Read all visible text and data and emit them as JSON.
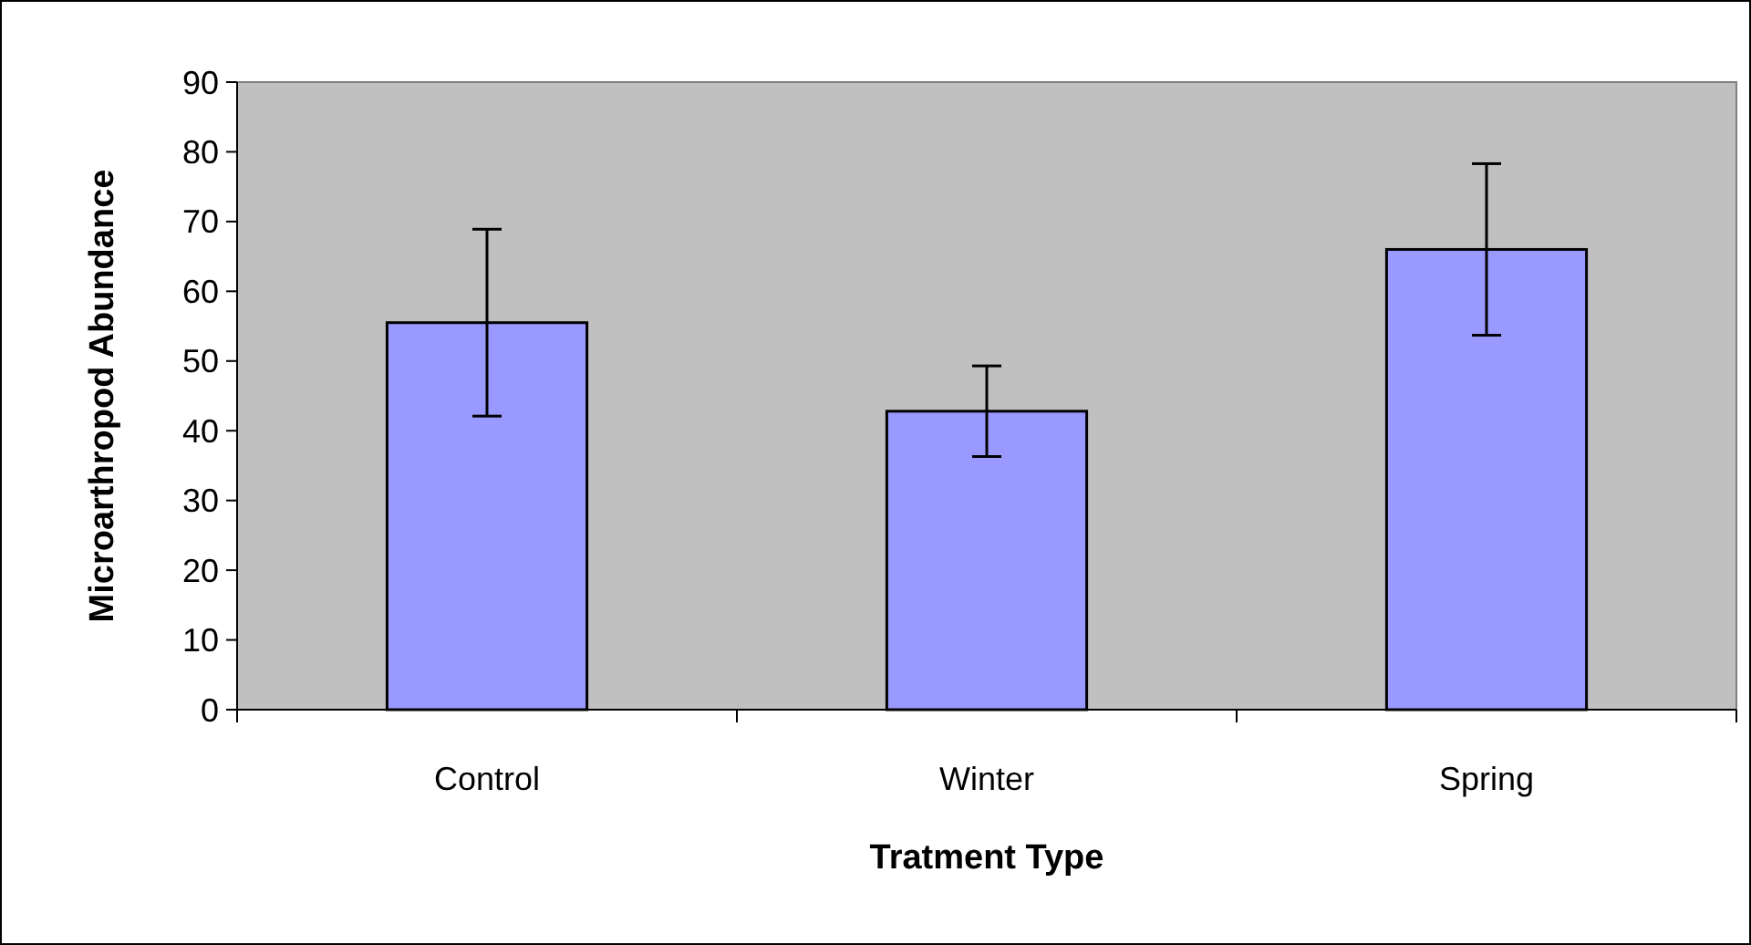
{
  "chart_data": {
    "type": "bar",
    "xlabel": "Tratment Type",
    "ylabel": "Microarthropod Abundance",
    "categories": [
      "Control",
      "Winter",
      "Spring"
    ],
    "values": [
      55.5,
      42.8,
      66
    ],
    "errors": [
      13.4,
      6.5,
      12.3
    ],
    "color": "#9999ff",
    "ylim": [
      0,
      90
    ],
    "yticks": [
      0,
      10,
      20,
      30,
      40,
      50,
      60,
      70,
      80,
      90
    ],
    "grid": false
  }
}
